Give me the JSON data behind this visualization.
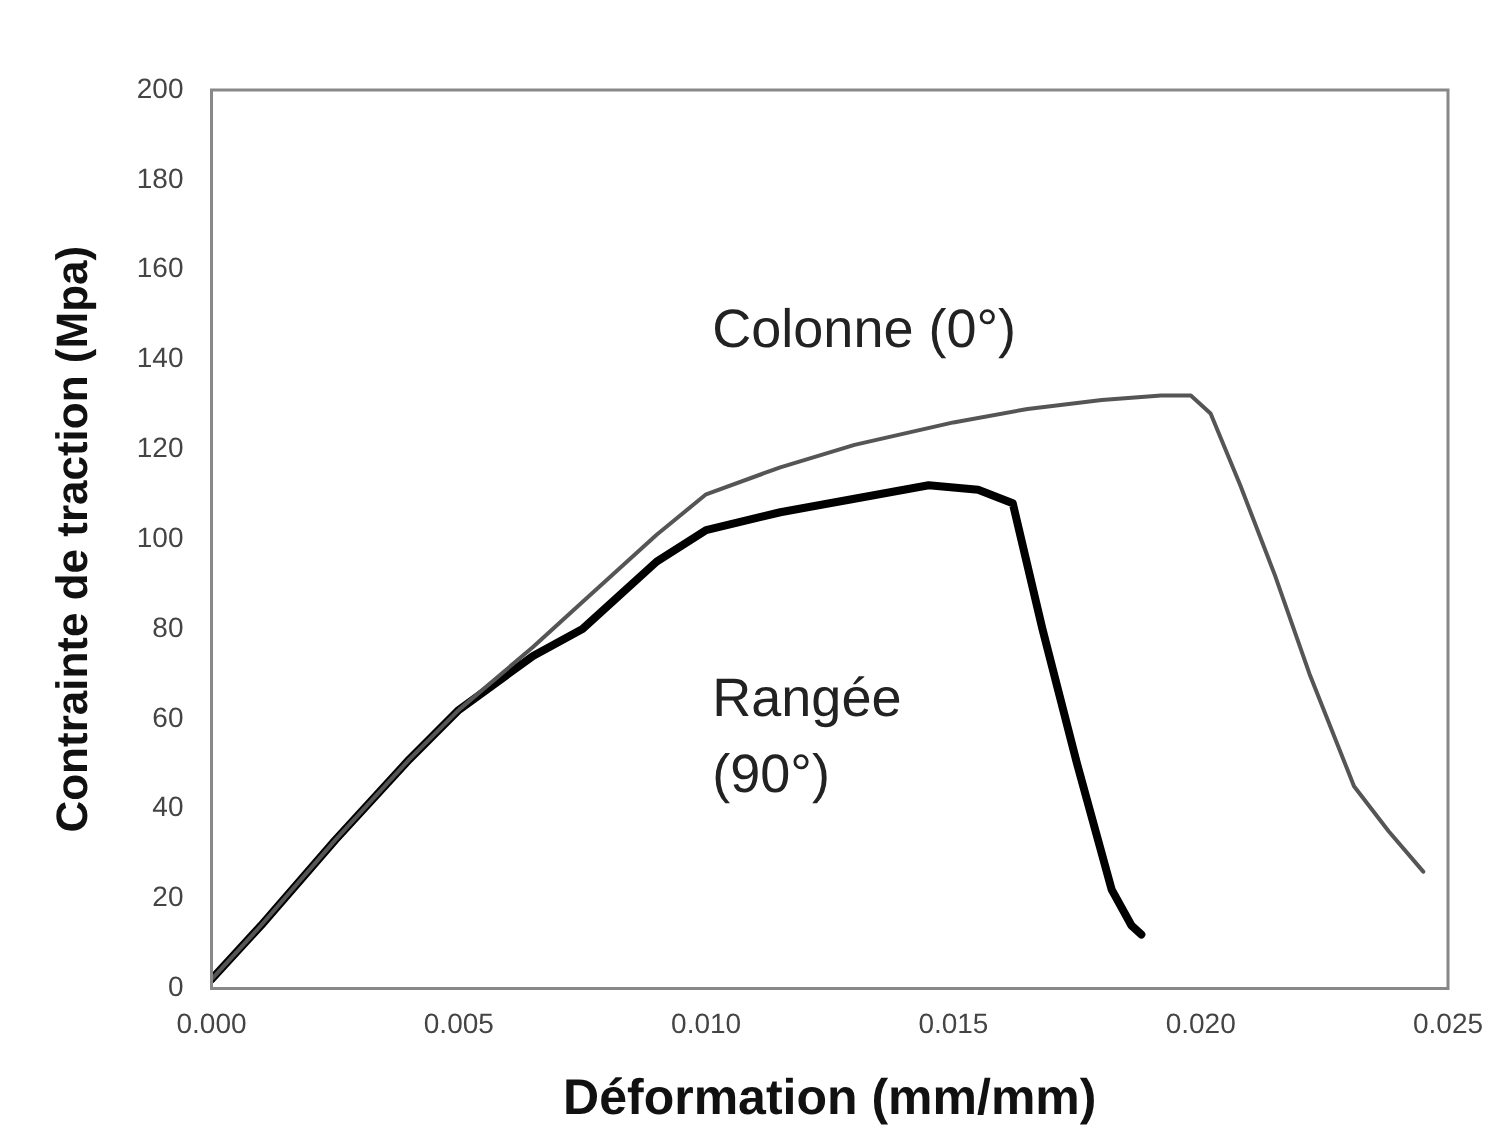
{
  "chart_data": {
    "type": "line",
    "xlabel": "Déformation (mm/mm)",
    "ylabel": "Contrainte de traction (Mpa)",
    "xlim": [
      0,
      0.025
    ],
    "ylim": [
      0,
      200
    ],
    "xticks": [
      {
        "value": 0,
        "label": "0.000"
      },
      {
        "value": 0.005,
        "label": "0.005"
      },
      {
        "value": 0.01,
        "label": "0.010"
      },
      {
        "value": 0.015,
        "label": "0.015"
      },
      {
        "value": 0.02,
        "label": "0.020"
      },
      {
        "value": 0.025,
        "label": "0.025"
      }
    ],
    "yticks": [
      0,
      20,
      40,
      60,
      80,
      100,
      120,
      140,
      160,
      180,
      200
    ],
    "grid": false,
    "legend": false,
    "marker": "none",
    "series": [
      {
        "color": "#555555",
        "x": [
          0,
          0.001,
          0.0025,
          0.004,
          0.005,
          0.0065,
          0.0075,
          0.009,
          0.01,
          0.0115,
          0.013,
          0.015,
          0.0165,
          0.018,
          0.0192,
          0.0198,
          0.0202,
          0.0208,
          0.0215,
          0.0222,
          0.0231,
          0.0238,
          0.0245
        ],
        "values": [
          2,
          14,
          33,
          51,
          62,
          76,
          86,
          101,
          110,
          116,
          121,
          126,
          129,
          131,
          132,
          132,
          128,
          112,
          92,
          70,
          45,
          35,
          26
        ]
      },
      {
        "color": "#000000",
        "x": [
          0,
          0.001,
          0.0025,
          0.004,
          0.005,
          0.0065,
          0.0075,
          0.009,
          0.01,
          0.0115,
          0.013,
          0.0145,
          0.0155,
          0.0162,
          0.0168,
          0.0175,
          0.0182,
          0.0186,
          0.0188
        ],
        "values": [
          2,
          14,
          33,
          51,
          62,
          74,
          80,
          95,
          102,
          106,
          109,
          112,
          111,
          108,
          80,
          50,
          22,
          14,
          12
        ]
      }
    ],
    "annotations": [
      "Colonne (0°)",
      "Rangée\n(90°)"
    ]
  }
}
